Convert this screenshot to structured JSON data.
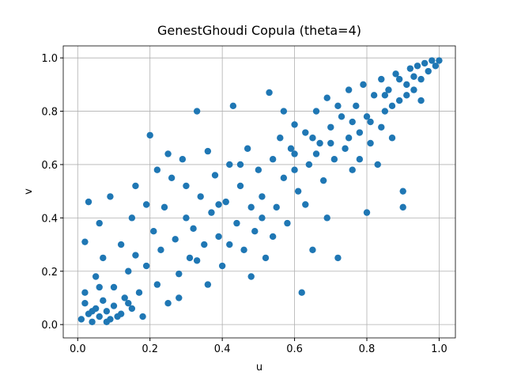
{
  "chart_data": {
    "type": "scatter",
    "title": "GenestGhoudi Copula (theta=4)",
    "x_label": "u",
    "y_label": "v",
    "color": "#1f77b4",
    "grid": true,
    "xlim": [
      -0.04,
      1.045
    ],
    "ylim": [
      -0.05,
      1.045
    ],
    "xticks": [
      {
        "value": 0,
        "label": "0.0"
      },
      0.2,
      0.4,
      0.6,
      0.8,
      {
        "value": 1,
        "label": "1.0"
      }
    ],
    "yticks": [
      {
        "value": 0,
        "label": "0.0"
      },
      0.2,
      0.4,
      0.6,
      0.8,
      {
        "value": 1,
        "label": "1.0"
      }
    ],
    "x": [
      0.01,
      0.02,
      0.03,
      0.04,
      0.05,
      0.06,
      0.07,
      0.08,
      0.09,
      0.1,
      0.02,
      0.05,
      0.07,
      0.1,
      0.12,
      0.13,
      0.14,
      0.15,
      0.17,
      0.18,
      0.03,
      0.06,
      0.09,
      0.12,
      0.15,
      0.16,
      0.19,
      0.2,
      0.21,
      0.22,
      0.23,
      0.24,
      0.25,
      0.26,
      0.27,
      0.28,
      0.29,
      0.3,
      0.31,
      0.32,
      0.33,
      0.34,
      0.35,
      0.36,
      0.37,
      0.38,
      0.39,
      0.4,
      0.41,
      0.42,
      0.43,
      0.44,
      0.45,
      0.46,
      0.47,
      0.48,
      0.49,
      0.5,
      0.51,
      0.52,
      0.53,
      0.54,
      0.55,
      0.56,
      0.57,
      0.58,
      0.59,
      0.6,
      0.61,
      0.62,
      0.63,
      0.64,
      0.65,
      0.66,
      0.67,
      0.68,
      0.69,
      0.7,
      0.71,
      0.72,
      0.73,
      0.74,
      0.75,
      0.76,
      0.77,
      0.78,
      0.79,
      0.8,
      0.81,
      0.82,
      0.83,
      0.84,
      0.85,
      0.86,
      0.87,
      0.88,
      0.89,
      0.9,
      0.91,
      0.92,
      0.93,
      0.94,
      0.95,
      0.96,
      0.97,
      0.98,
      0.99,
      1.0,
      0.9,
      0.95,
      0.02,
      0.04,
      0.06,
      0.08,
      0.11,
      0.14,
      0.16,
      0.19,
      0.22,
      0.25,
      0.28,
      0.3,
      0.33,
      0.36,
      0.39,
      0.42,
      0.45,
      0.48,
      0.51,
      0.54,
      0.57,
      0.6,
      0.63,
      0.66,
      0.69,
      0.72,
      0.75,
      0.78,
      0.81,
      0.84,
      0.87,
      0.89,
      0.91,
      0.93,
      0.85,
      0.8,
      0.76,
      0.7,
      0.65,
      0.6
    ],
    "values": [
      0.02,
      0.08,
      0.04,
      0.01,
      0.06,
      0.03,
      0.09,
      0.05,
      0.02,
      0.07,
      0.31,
      0.18,
      0.25,
      0.14,
      0.04,
      0.1,
      0.2,
      0.06,
      0.12,
      0.03,
      0.46,
      0.38,
      0.48,
      0.3,
      0.4,
      0.52,
      0.22,
      0.71,
      0.35,
      0.15,
      0.28,
      0.44,
      0.08,
      0.55,
      0.32,
      0.19,
      0.62,
      0.4,
      0.25,
      0.36,
      0.8,
      0.48,
      0.3,
      0.15,
      0.42,
      0.56,
      0.33,
      0.22,
      0.46,
      0.6,
      0.82,
      0.38,
      0.52,
      0.28,
      0.66,
      0.44,
      0.35,
      0.58,
      0.48,
      0.25,
      0.87,
      0.62,
      0.44,
      0.7,
      0.55,
      0.38,
      0.66,
      0.75,
      0.5,
      0.12,
      0.72,
      0.6,
      0.28,
      0.8,
      0.68,
      0.54,
      0.85,
      0.74,
      0.62,
      0.25,
      0.78,
      0.66,
      0.88,
      0.58,
      0.82,
      0.72,
      0.9,
      0.42,
      0.76,
      0.86,
      0.6,
      0.92,
      0.8,
      0.88,
      0.7,
      0.94,
      0.84,
      0.44,
      0.9,
      0.96,
      0.88,
      0.97,
      0.92,
      0.98,
      0.95,
      0.99,
      0.97,
      0.99,
      0.5,
      0.84,
      0.12,
      0.05,
      0.14,
      0.01,
      0.03,
      0.08,
      0.26,
      0.45,
      0.58,
      0.64,
      0.1,
      0.52,
      0.24,
      0.65,
      0.45,
      0.3,
      0.6,
      0.18,
      0.4,
      0.33,
      0.8,
      0.58,
      0.45,
      0.64,
      0.4,
      0.82,
      0.7,
      0.62,
      0.68,
      0.74,
      0.82,
      0.92,
      0.86,
      0.93,
      0.86,
      0.78,
      0.76,
      0.68,
      0.7,
      0.64
    ]
  }
}
